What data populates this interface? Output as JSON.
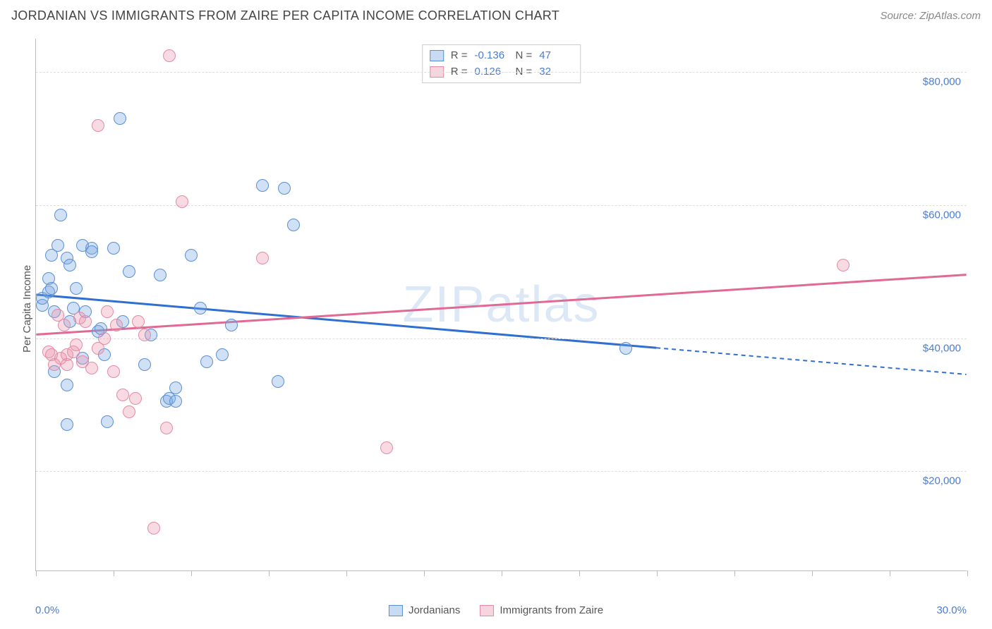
{
  "title": "JORDANIAN VS IMMIGRANTS FROM ZAIRE PER CAPITA INCOME CORRELATION CHART",
  "source": "Source: ZipAtlas.com",
  "watermark": "ZIPatlas",
  "y_axis_label": "Per Capita Income",
  "x_min_label": "0.0%",
  "x_max_label": "30.0%",
  "chart": {
    "type": "scatter",
    "xlim": [
      0,
      30
    ],
    "ylim": [
      5000,
      85000
    ],
    "y_ticks": [
      20000,
      40000,
      60000,
      80000
    ],
    "y_tick_labels": [
      "$20,000",
      "$40,000",
      "$60,000",
      "$80,000"
    ],
    "x_ticks": [
      0,
      2.5,
      5,
      7.5,
      10,
      12.5,
      15,
      17.5,
      20,
      22.5,
      25,
      27.5,
      30
    ],
    "grid_color": "#dddddd",
    "background_color": "#ffffff",
    "point_radius": 9,
    "series": [
      {
        "key": "a",
        "label": "Jordanians",
        "color_fill": "rgba(120,165,225,0.35)",
        "color_stroke": "#5a8fd4",
        "trend_color": "#2f6fd0",
        "R": "-0.136",
        "N": "47",
        "trend": {
          "x1": 0,
          "y1": 46500,
          "x2": 20,
          "y2": 38500,
          "x2_dash": 30,
          "y2_dash": 34500
        },
        "points": [
          [
            0.2,
            45000
          ],
          [
            0.2,
            46000
          ],
          [
            0.4,
            49000
          ],
          [
            0.4,
            47000
          ],
          [
            0.5,
            47500
          ],
          [
            0.5,
            52500
          ],
          [
            0.6,
            44000
          ],
          [
            0.6,
            35000
          ],
          [
            0.7,
            54000
          ],
          [
            0.8,
            58500
          ],
          [
            1.0,
            33000
          ],
          [
            1.0,
            52000
          ],
          [
            1.1,
            51000
          ],
          [
            1.1,
            42500
          ],
          [
            1.2,
            44500
          ],
          [
            1.3,
            47500
          ],
          [
            1.5,
            54000
          ],
          [
            1.5,
            37000
          ],
          [
            1.6,
            44000
          ],
          [
            1.8,
            53500
          ],
          [
            1.8,
            53000
          ],
          [
            2.0,
            41000
          ],
          [
            2.1,
            41500
          ],
          [
            2.2,
            37500
          ],
          [
            2.3,
            27500
          ],
          [
            2.5,
            53500
          ],
          [
            2.7,
            73000
          ],
          [
            2.8,
            42500
          ],
          [
            3.0,
            50000
          ],
          [
            3.5,
            36000
          ],
          [
            3.7,
            40500
          ],
          [
            4.0,
            49500
          ],
          [
            4.2,
            30500
          ],
          [
            4.3,
            31000
          ],
          [
            4.5,
            32500
          ],
          [
            4.5,
            30500
          ],
          [
            5.0,
            52500
          ],
          [
            5.3,
            44500
          ],
          [
            5.5,
            36500
          ],
          [
            6.0,
            37500
          ],
          [
            6.3,
            42000
          ],
          [
            7.3,
            63000
          ],
          [
            7.8,
            33500
          ],
          [
            8.0,
            62500
          ],
          [
            8.3,
            57000
          ],
          [
            19.0,
            38500
          ],
          [
            1.0,
            27000
          ]
        ]
      },
      {
        "key": "b",
        "label": "Immigrants from Zaire",
        "color_fill": "rgba(235,150,175,0.35)",
        "color_stroke": "#e48aa5",
        "trend_color": "#e06a95",
        "R": "0.126",
        "N": "32",
        "trend": {
          "x1": 0,
          "y1": 40500,
          "x2": 30,
          "y2": 49500,
          "x2_dash": 30,
          "y2_dash": 49500
        },
        "points": [
          [
            0.4,
            38000
          ],
          [
            0.5,
            37500
          ],
          [
            0.6,
            36000
          ],
          [
            0.7,
            43500
          ],
          [
            0.8,
            37000
          ],
          [
            0.9,
            42000
          ],
          [
            1.0,
            37500
          ],
          [
            1.0,
            36000
          ],
          [
            1.2,
            38000
          ],
          [
            1.3,
            39000
          ],
          [
            1.4,
            43000
          ],
          [
            1.5,
            36500
          ],
          [
            1.6,
            42500
          ],
          [
            1.8,
            35500
          ],
          [
            2.0,
            38500
          ],
          [
            2.0,
            72000
          ],
          [
            2.2,
            40000
          ],
          [
            2.3,
            44000
          ],
          [
            2.5,
            35000
          ],
          [
            2.6,
            42000
          ],
          [
            2.8,
            31500
          ],
          [
            3.0,
            29000
          ],
          [
            3.2,
            31000
          ],
          [
            3.3,
            42500
          ],
          [
            3.5,
            40500
          ],
          [
            3.8,
            11500
          ],
          [
            4.2,
            26500
          ],
          [
            4.3,
            82500
          ],
          [
            4.7,
            60500
          ],
          [
            7.3,
            52000
          ],
          [
            11.3,
            23500
          ],
          [
            26.0,
            51000
          ]
        ]
      }
    ]
  },
  "stats_box": {
    "r_label": "R =",
    "n_label": "N ="
  },
  "bottom_legend": {
    "items": [
      {
        "swatch": "a",
        "label": "Jordanians"
      },
      {
        "swatch": "b",
        "label": "Immigrants from Zaire"
      }
    ]
  }
}
